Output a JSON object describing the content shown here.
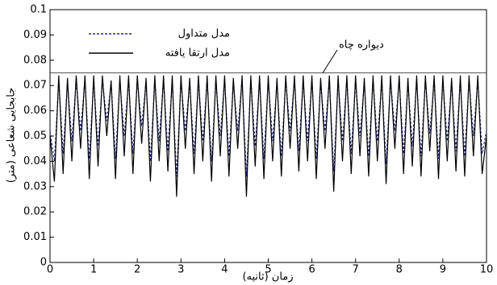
{
  "chart_data": {
    "type": "line",
    "x_label": "زمان (ثانیه)",
    "y_label": "جابجایی شعاعی (متر)",
    "annotation": "دیواره چاه",
    "wall": 0.075,
    "xlim": [
      0,
      10
    ],
    "ylim": [
      0,
      0.1
    ],
    "xticks": [
      0,
      1,
      2,
      3,
      4,
      5,
      6,
      7,
      8,
      9,
      10
    ],
    "yticks": [
      0,
      0.01,
      0.02,
      0.03,
      0.04,
      0.05,
      0.06,
      0.07,
      0.08,
      0.09,
      0.1
    ],
    "x": [
      0,
      0.1,
      0.2,
      0.3,
      0.4,
      0.5,
      0.6,
      0.7,
      0.8,
      0.9,
      1,
      1.1,
      1.2,
      1.3,
      1.4,
      1.5,
      1.6,
      1.7,
      1.8,
      1.9,
      2,
      2.1,
      2.2,
      2.3,
      2.4,
      2.5,
      2.6,
      2.7,
      2.8,
      2.9,
      3,
      3.1,
      3.2,
      3.3,
      3.4,
      3.5,
      3.6,
      3.7,
      3.8,
      3.9,
      4,
      4.1,
      4.2,
      4.3,
      4.4,
      4.5,
      4.6,
      4.7,
      4.8,
      4.9,
      5,
      5.1,
      5.2,
      5.3,
      5.4,
      5.5,
      5.6,
      5.7,
      5.8,
      5.9,
      6,
      6.1,
      6.2,
      6.3,
      6.4,
      6.5,
      6.6,
      6.7,
      6.8,
      6.9,
      7,
      7.1,
      7.2,
      7.3,
      7.4,
      7.5,
      7.6,
      7.7,
      7.8,
      7.9,
      8,
      8.1,
      8.2,
      8.3,
      8.4,
      8.5,
      8.6,
      8.7,
      8.8,
      8.9,
      9,
      9.1,
      9.2,
      9.3,
      9.4,
      9.5,
      9.6,
      9.7,
      9.8,
      9.9,
      10
    ],
    "series": [
      {
        "name": "مدل متداول",
        "color": "#1f2a80",
        "dash": true,
        "values": [
          0.052,
          0.04,
          0.072,
          0.043,
          0.071,
          0.048,
          0.072,
          0.052,
          0.072,
          0.041,
          0.072,
          0.046,
          0.072,
          0.056,
          0.071,
          0.041,
          0.072,
          0.05,
          0.072,
          0.043,
          0.072,
          0.054,
          0.071,
          0.04,
          0.072,
          0.048,
          0.072,
          0.044,
          0.072,
          0.034,
          0.072,
          0.052,
          0.071,
          0.043,
          0.072,
          0.048,
          0.072,
          0.04,
          0.072,
          0.05,
          0.072,
          0.042,
          0.071,
          0.052,
          0.072,
          0.034,
          0.072,
          0.046,
          0.072,
          0.041,
          0.072,
          0.048,
          0.071,
          0.042,
          0.072,
          0.052,
          0.072,
          0.044,
          0.072,
          0.048,
          0.072,
          0.041,
          0.071,
          0.052,
          0.072,
          0.036,
          0.072,
          0.048,
          0.072,
          0.043,
          0.072,
          0.05,
          0.071,
          0.042,
          0.072,
          0.048,
          0.072,
          0.039,
          0.072,
          0.052,
          0.072,
          0.043,
          0.071,
          0.046,
          0.072,
          0.042,
          0.072,
          0.051,
          0.072,
          0.041,
          0.072,
          0.048,
          0.071,
          0.044,
          0.072,
          0.042,
          0.072,
          0.05,
          0.072,
          0.043,
          0.052
        ]
      },
      {
        "name": "مدل ارتقا یافته",
        "color": "#000000",
        "dash": false,
        "values": [
          0.05,
          0.032,
          0.074,
          0.035,
          0.073,
          0.04,
          0.074,
          0.045,
          0.074,
          0.033,
          0.074,
          0.038,
          0.074,
          0.05,
          0.072,
          0.033,
          0.074,
          0.042,
          0.074,
          0.035,
          0.074,
          0.047,
          0.073,
          0.032,
          0.074,
          0.04,
          0.074,
          0.036,
          0.074,
          0.026,
          0.074,
          0.045,
          0.073,
          0.035,
          0.074,
          0.04,
          0.074,
          0.032,
          0.074,
          0.042,
          0.074,
          0.034,
          0.073,
          0.045,
          0.074,
          0.026,
          0.074,
          0.038,
          0.074,
          0.033,
          0.074,
          0.04,
          0.073,
          0.034,
          0.074,
          0.045,
          0.074,
          0.036,
          0.074,
          0.04,
          0.074,
          0.033,
          0.073,
          0.045,
          0.074,
          0.028,
          0.074,
          0.04,
          0.074,
          0.035,
          0.074,
          0.042,
          0.073,
          0.034,
          0.074,
          0.04,
          0.074,
          0.031,
          0.074,
          0.045,
          0.074,
          0.035,
          0.073,
          0.038,
          0.074,
          0.034,
          0.074,
          0.044,
          0.074,
          0.033,
          0.074,
          0.04,
          0.073,
          0.036,
          0.074,
          0.034,
          0.074,
          0.042,
          0.074,
          0.035,
          0.05
        ]
      }
    ]
  }
}
